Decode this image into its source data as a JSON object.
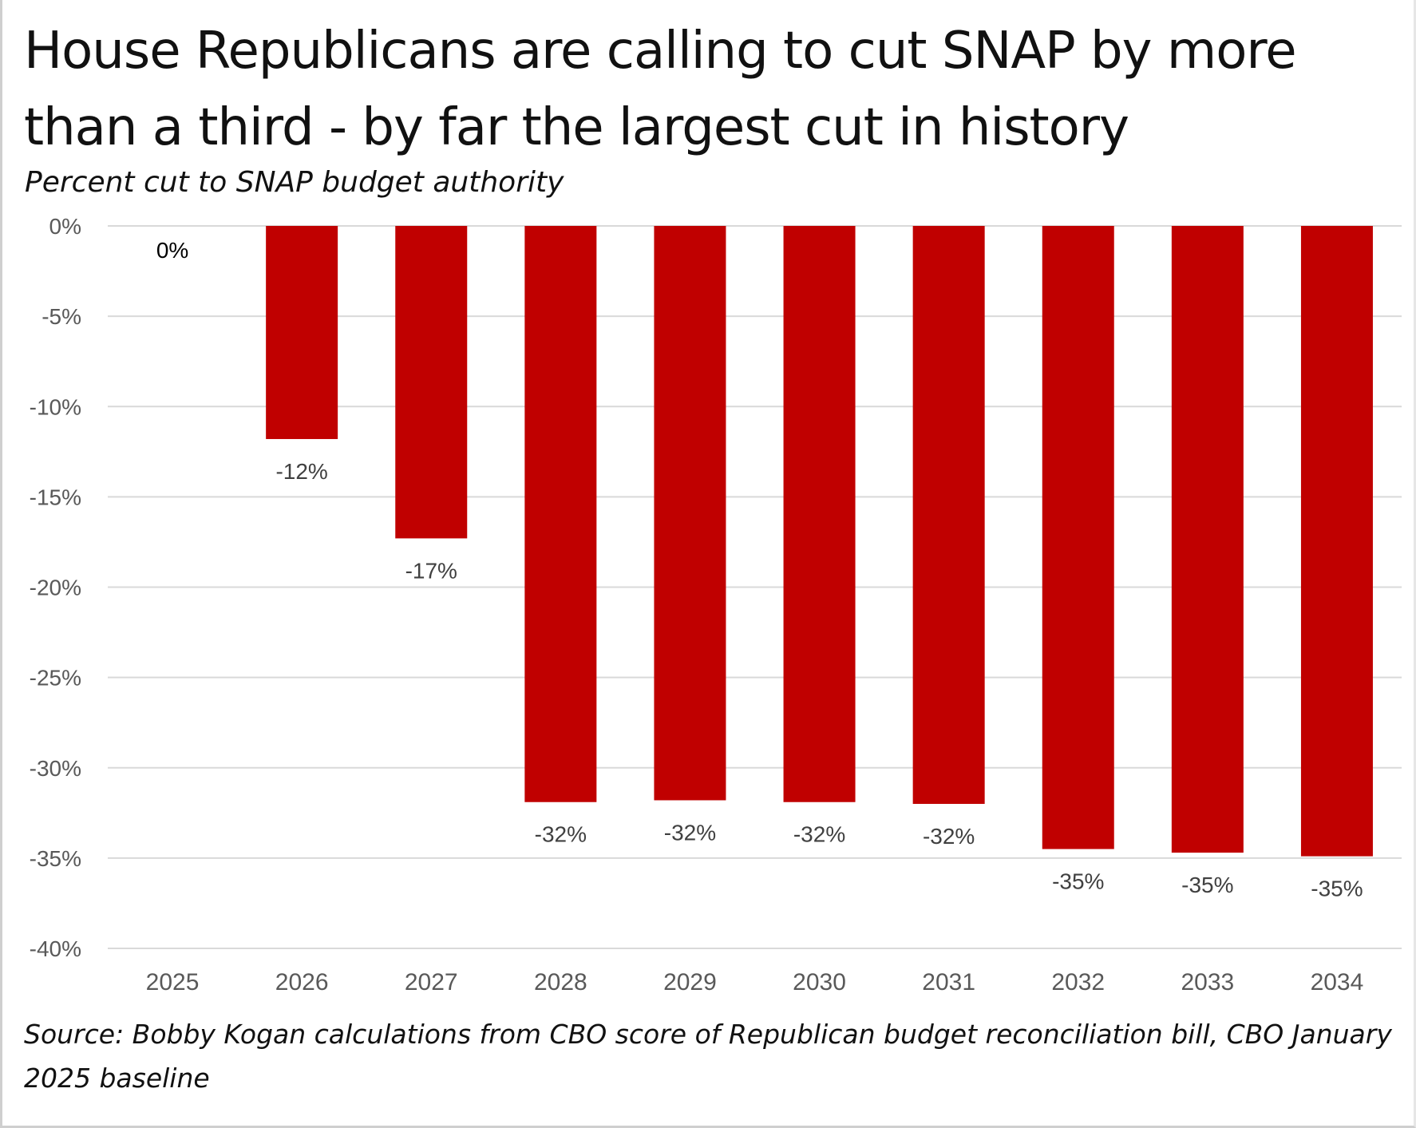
{
  "title": "House Republicans are calling to cut SNAP by more than a third - by far the largest cut in history",
  "subtitle": "Percent cut to SNAP budget authority",
  "source": "Source: Bobby Kogan calculations from CBO score of Republican budget reconciliation bill, CBO January 2025 baseline",
  "colors": {
    "bar": "#c00000",
    "grid": "#d9d9d9",
    "tick_text": "#595959",
    "label_text": "#404040"
  },
  "chart_data": {
    "type": "bar",
    "categories": [
      "2025",
      "2026",
      "2027",
      "2028",
      "2029",
      "2030",
      "2031",
      "2032",
      "2033",
      "2034"
    ],
    "values": [
      0,
      -11.8,
      -17.3,
      -31.9,
      -31.8,
      -31.9,
      -32.0,
      -34.5,
      -34.7,
      -34.9
    ],
    "data_labels": [
      "0%",
      "-12%",
      "-17%",
      "-32%",
      "-32%",
      "-32%",
      "-32%",
      "-35%",
      "-35%",
      "-35%"
    ],
    "y_ticks": [
      0,
      -5,
      -10,
      -15,
      -20,
      -25,
      -30,
      -35,
      -40
    ],
    "y_tick_labels": [
      "0%",
      "-5%",
      "-10%",
      "-15%",
      "-20%",
      "-25%",
      "-30%",
      "-35%",
      "-40%"
    ],
    "ylim": [
      -40,
      0
    ],
    "grid": true,
    "legend": false
  }
}
